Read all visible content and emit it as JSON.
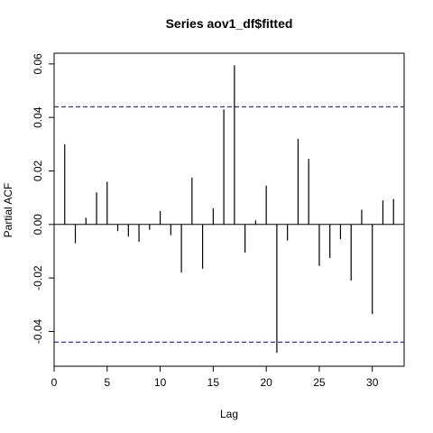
{
  "chart_data": {
    "type": "bar",
    "title": "Series  aov1_df$fitted",
    "xlabel": "Lag",
    "ylabel": "Partial ACF",
    "xlim": [
      0,
      33
    ],
    "ylim": [
      -0.053,
      0.064
    ],
    "x_ticks": [
      0,
      5,
      10,
      15,
      20,
      25,
      30
    ],
    "x_tick_labels": [
      "0",
      "5",
      "10",
      "15",
      "20",
      "25",
      "30"
    ],
    "y_ticks": [
      -0.04,
      -0.02,
      0.0,
      0.02,
      0.04,
      0.06
    ],
    "y_tick_labels": [
      "-0.04",
      "-0.02",
      "0.00",
      "0.02",
      "0.04",
      "0.06"
    ],
    "confidence_bounds": [
      0.044,
      -0.044
    ],
    "lags": [
      1,
      2,
      3,
      4,
      5,
      6,
      7,
      8,
      9,
      10,
      11,
      12,
      13,
      14,
      15,
      16,
      17,
      18,
      19,
      20,
      21,
      22,
      23,
      24,
      25,
      26,
      27,
      28,
      29,
      30,
      31,
      32
    ],
    "values": [
      0.03,
      -0.007,
      0.0025,
      0.012,
      0.016,
      -0.0025,
      -0.0045,
      -0.0065,
      -0.002,
      0.005,
      -0.004,
      -0.018,
      0.0175,
      -0.0165,
      0.006,
      0.043,
      0.0595,
      -0.0105,
      0.0015,
      0.0145,
      -0.048,
      -0.006,
      0.032,
      0.0245,
      -0.0155,
      -0.0125,
      -0.0055,
      -0.021,
      0.0055,
      -0.0335,
      0.009,
      0.0095
    ],
    "colors": {
      "bars": "#000000",
      "bounds": "#00008B",
      "axis": "#000000"
    }
  }
}
